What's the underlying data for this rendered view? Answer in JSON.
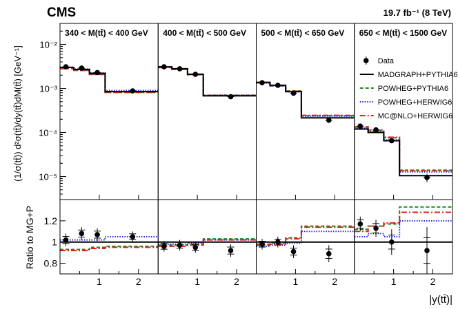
{
  "experiment": "CMS",
  "lumi_label": "19.7 fb⁻¹ (8 TeV)",
  "chart_data": {
    "type": "line",
    "ylabel_top": "(1/σ(tt̄)) d²σ(tt̄)/dy(tt̄)dM(tt̄) [GeV⁻¹]",
    "ylabel_bottom": "Ratio to MG+P",
    "xlabel": "|y(tt̄)|",
    "top_yscale": "log",
    "top_ylim": [
      3e-06,
      0.03
    ],
    "top_yticks": [
      {
        "value": 1e-05,
        "label": "10⁻⁵"
      },
      {
        "value": 0.0001,
        "label": "10⁻⁴"
      },
      {
        "value": 0.001,
        "label": "10⁻³"
      },
      {
        "value": 0.01,
        "label": "10⁻²"
      }
    ],
    "ratio_ylim": [
      0.7,
      1.4
    ],
    "ratio_yticks": [
      {
        "value": 0.8,
        "label": "0.8"
      },
      {
        "value": 1.0,
        "label": "1"
      },
      {
        "value": 1.2,
        "label": "1.2"
      }
    ],
    "xlim": [
      0,
      2.5
    ],
    "xticks": [
      {
        "value": 1,
        "label": "1"
      },
      {
        "value": 2,
        "label": "2"
      }
    ],
    "bin_edges": [
      0,
      0.35,
      0.75,
      1.15,
      2.5
    ],
    "legend_position": "top-right",
    "legend": [
      {
        "key": "data",
        "label": "Data"
      },
      {
        "key": "mg",
        "label": "MADGRAPH+PYTHIA6"
      },
      {
        "key": "pp",
        "label": "POWHEG+PYTHIA6"
      },
      {
        "key": "ph",
        "label": "POWHEG+HERWIG6"
      },
      {
        "key": "mc",
        "label": "MC@NLO+HERWIG6"
      }
    ],
    "styles": {
      "mg": {
        "color": "#000000",
        "dash": "none"
      },
      "pp": {
        "color": "#1a8a1a",
        "dash": "5,3"
      },
      "ph": {
        "color": "#2020e0",
        "dash": "1.5,2"
      },
      "mc": {
        "color": "#e02020",
        "dash": "8,3,2,3"
      }
    },
    "panels": [
      {
        "label": "340 < M(tt̄) < 400 GeV",
        "data_x": [
          0.15,
          0.55,
          0.95,
          1.85
        ],
        "data_y": [
          0.0031,
          0.0029,
          0.0023,
          0.00088
        ],
        "data_yerr_frac": [
          0.06,
          0.06,
          0.06,
          0.05
        ],
        "series": {
          "mg": [
            0.003,
            0.0027,
            0.0022,
            0.00085
          ],
          "pp": [
            0.00285,
            0.00258,
            0.0021,
            0.00082
          ],
          "ph": [
            0.00305,
            0.00275,
            0.00225,
            0.0009
          ],
          "mc": [
            0.00282,
            0.00256,
            0.00208,
            0.00081
          ]
        },
        "ratio_data": [
          1.02,
          1.08,
          1.07,
          1.05
        ],
        "ratio_err": [
          0.06,
          0.06,
          0.06,
          0.05
        ],
        "ratio": {
          "mg": [
            1.0,
            1.0,
            1.0,
            1.0
          ],
          "pp": [
            0.93,
            0.93,
            0.95,
            0.96
          ],
          "ph": [
            1.02,
            1.02,
            1.02,
            1.05
          ],
          "mc": [
            0.92,
            0.92,
            0.94,
            0.95
          ]
        }
      },
      {
        "label": "400 < M(tt̄) < 500 GeV",
        "data_x": [
          0.15,
          0.55,
          0.95,
          1.85
        ],
        "data_y": [
          0.0031,
          0.0028,
          0.0021,
          0.00065
        ],
        "data_yerr_frac": [
          0.06,
          0.06,
          0.06,
          0.06
        ],
        "series": {
          "mg": [
            0.0031,
            0.0028,
            0.0021,
            0.00068
          ],
          "pp": [
            0.003,
            0.00272,
            0.00208,
            0.0007
          ],
          "ph": [
            0.00305,
            0.00276,
            0.00212,
            0.0007
          ],
          "mc": [
            0.00298,
            0.0027,
            0.00205,
            0.00069
          ]
        },
        "ratio_data": [
          0.96,
          0.97,
          0.95,
          0.92
        ],
        "ratio_err": [
          0.05,
          0.05,
          0.05,
          0.06
        ],
        "ratio": {
          "mg": [
            1.0,
            1.0,
            1.0,
            1.0
          ],
          "pp": [
            0.97,
            0.97,
            0.98,
            1.03
          ],
          "ph": [
            0.98,
            0.98,
            0.99,
            1.02
          ],
          "mc": [
            0.96,
            0.96,
            0.97,
            1.02
          ]
        }
      },
      {
        "label": "500 < M(tt̄) < 650 GeV",
        "data_x": [
          0.15,
          0.55,
          0.95,
          1.85
        ],
        "data_y": [
          0.00135,
          0.00118,
          0.00078,
          0.00019
        ],
        "data_yerr_frac": [
          0.05,
          0.05,
          0.06,
          0.08
        ],
        "series": {
          "mg": [
            0.00138,
            0.00118,
            0.00085,
            0.000215
          ],
          "pp": [
            0.00135,
            0.00115,
            0.00088,
            0.00024
          ],
          "ph": [
            0.00133,
            0.00114,
            0.00084,
            0.000235
          ],
          "mc": [
            0.00135,
            0.00116,
            0.00087,
            0.000245
          ]
        },
        "ratio_data": [
          0.98,
          1.0,
          0.91,
          0.89
        ],
        "ratio_err": [
          0.05,
          0.05,
          0.06,
          0.08
        ],
        "ratio": {
          "mg": [
            1.0,
            1.0,
            1.0,
            1.0
          ],
          "pp": [
            0.98,
            0.99,
            1.04,
            1.15
          ],
          "ph": [
            0.96,
            0.97,
            0.99,
            1.1
          ],
          "mc": [
            0.97,
            0.98,
            1.03,
            1.14
          ]
        }
      },
      {
        "label": "650 < M(tt̄) < 1500 GeV",
        "data_x": [
          0.15,
          0.55,
          0.95,
          1.85
        ],
        "data_y": [
          0.00014,
          0.000115,
          6.5e-05,
          9.5e-06
        ],
        "data_yerr_frac": [
          0.06,
          0.06,
          0.08,
          0.22
        ],
        "series": {
          "mg": [
            0.00012,
            0.0001,
            6.5e-05,
            1.05e-05
          ],
          "pp": [
            0.000135,
            0.000112,
            7.6e-05,
            1.4e-05
          ],
          "ph": [
            0.000125,
            0.000105,
            6.8e-05,
            1.28e-05
          ],
          "mc": [
            0.000133,
            0.000115,
            7.8e-05,
            1.35e-05
          ]
        },
        "ratio_data": [
          1.17,
          1.13,
          1.0,
          0.92
        ],
        "ratio_err": [
          0.07,
          0.08,
          0.12,
          0.22
        ],
        "ratio": {
          "mg": [
            1.0,
            1.0,
            1.0,
            1.0
          ],
          "pp": [
            1.12,
            1.15,
            1.17,
            1.33
          ],
          "ph": [
            1.05,
            1.08,
            1.05,
            1.2
          ],
          "mc": [
            1.1,
            1.15,
            1.18,
            1.28
          ]
        }
      }
    ]
  }
}
